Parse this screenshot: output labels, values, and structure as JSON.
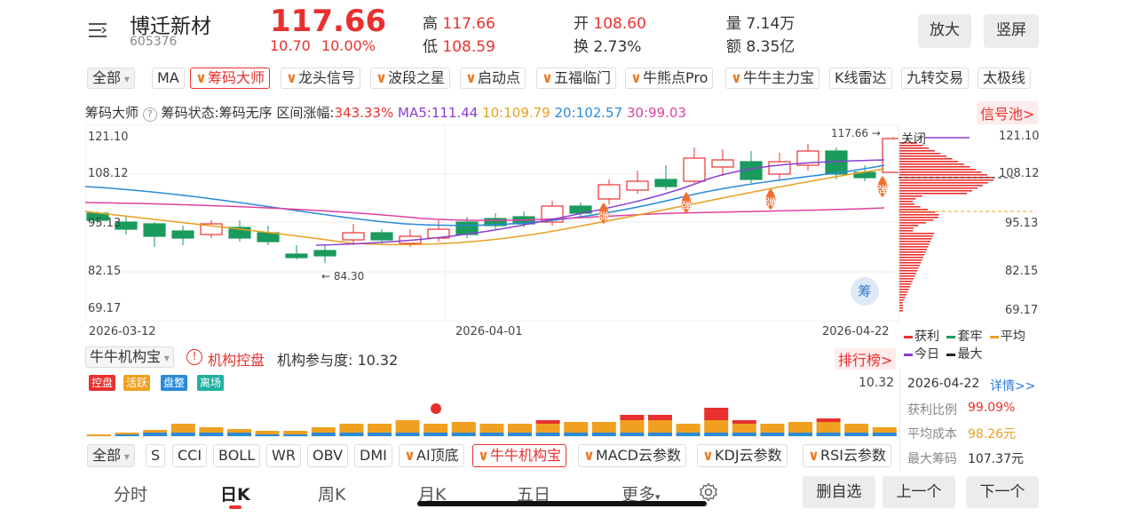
{
  "stock": {
    "name": "博迁新材",
    "code": "605376",
    "price": "117.66",
    "change": "10.70",
    "change_pct": "10.00%"
  },
  "quote": {
    "high_label": "高",
    "high": "117.66",
    "low_label": "低",
    "low": "108.59",
    "open_label": "开",
    "open": "108.60",
    "turnover_label": "换",
    "turnover": "2.73%",
    "volume_label": "量",
    "volume": "7.14万",
    "amount_label": "额",
    "amount": "8.35亿"
  },
  "header_buttons": {
    "zoom": "放大",
    "portrait": "竖屏"
  },
  "indicator_tabs": [
    "全部",
    "MA",
    "筹码大师",
    "龙头信号",
    "波段之星",
    "启动点",
    "五福临门",
    "牛熊点Pro",
    "牛牛主力宝",
    "K线雷达",
    "九转交易",
    "太极线"
  ],
  "info_line": {
    "name": "筹码大师",
    "status": "筹码状态:筹码无序",
    "range_label": "区间涨幅:",
    "range_value": "343.33%",
    "ma5": "MA5:111.44",
    "ma10": "10:109.79",
    "ma20": "20:102.57",
    "ma30": "30:99.03",
    "signal_pool": "信号池>"
  },
  "price_axis": [
    "121.10",
    "108.12",
    "95.13",
    "82.15",
    "69.17"
  ],
  "right_axis": [
    "121.10",
    "108.12",
    "95.13",
    "82.15",
    "69.17"
  ],
  "date_axis": [
    "2026-03-12",
    "2026-04-01",
    "2026-04-22"
  ],
  "annotations": {
    "high_mark": "117.66 →",
    "low_mark": "← 84.30",
    "bounce": "弹",
    "chip_badge": "筹",
    "close_label": "关闭"
  },
  "chip_legend": {
    "profit": "获利",
    "trapped": "套牢",
    "avg": "平均",
    "today": "今日",
    "max": "最大"
  },
  "sub_panel": {
    "selector": "牛牛机构宝",
    "title": "机构控盘",
    "participation": "机构参与度: 10.32",
    "ranking": "排行榜>",
    "value": "10.32",
    "pills": [
      "控盘",
      "活跃",
      "盘整",
      "离场"
    ]
  },
  "chip_stats": {
    "date": "2026-04-22",
    "detail": "详情>>",
    "profit_ratio_label": "获利比例",
    "profit_ratio": "99.09%",
    "avg_cost_label": "平均成本",
    "avg_cost": "98.26元",
    "max_chip_label": "最大筹码",
    "max_chip": "107.37元"
  },
  "sub_tabs": [
    "全部",
    "S",
    "CCI",
    "BOLL",
    "WR",
    "OBV",
    "DMI",
    "AI顶底",
    "牛牛机构宝",
    "MACD云参数",
    "KDJ云参数",
    "RSI云参数"
  ],
  "bottom_nav": {
    "items": [
      "分时",
      "日K",
      "周K",
      "月K",
      "五日",
      "更多"
    ],
    "actions": [
      "删自选",
      "上一个",
      "下一个"
    ]
  },
  "colors": {
    "up": "#e8312f",
    "down": "#1a9a5c",
    "ma5": "#8a3fd1",
    "ma10": "#e8a020",
    "ma20": "#2a8ad8",
    "ma30": "#e040a0"
  }
}
